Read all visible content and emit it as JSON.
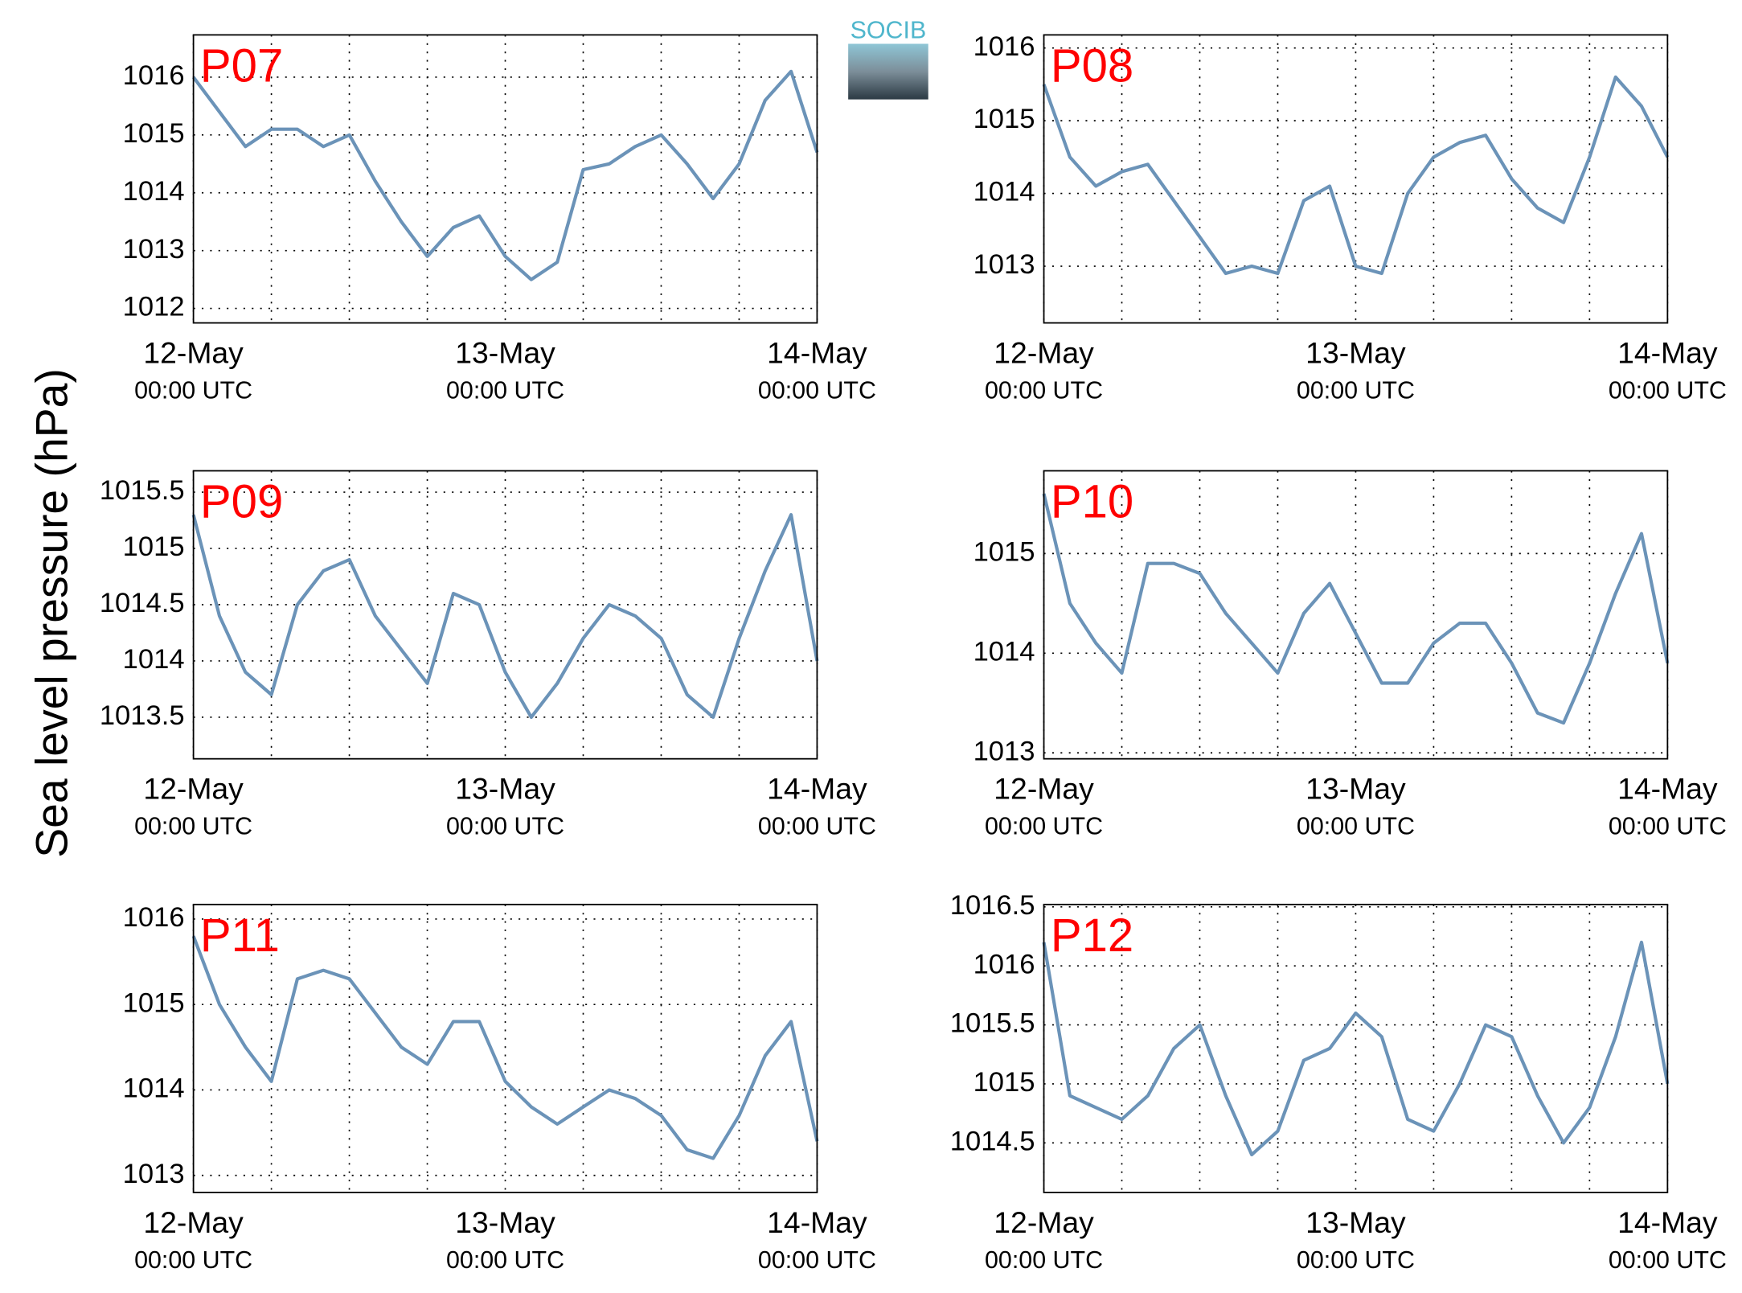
{
  "ylabel": "Sea level pressure (hPa)",
  "logo": "SOCIB",
  "chart_data": [
    {
      "type": "line",
      "title": "P07",
      "x": [
        0,
        2,
        4,
        6,
        8,
        10,
        12,
        14,
        16,
        18,
        20,
        22,
        24,
        26,
        28,
        30,
        32,
        34,
        36,
        38,
        40,
        42,
        44,
        46,
        48
      ],
      "series": [
        {
          "color": "#6b93b8",
          "values": [
            1016.0,
            1015.4,
            1014.8,
            1015.1,
            1015.1,
            1014.8,
            1015.0,
            1014.2,
            1013.5,
            1012.9,
            1013.4,
            1013.6,
            1012.9,
            1012.5,
            1012.8,
            1014.4,
            1014.5,
            1014.8,
            1015.0,
            1014.5,
            1013.9,
            1014.5,
            1015.6,
            1016.1,
            1014.7
          ]
        }
      ],
      "xlim": [
        0,
        48
      ],
      "ylim": [
        1011.75,
        1016.73
      ],
      "yticks": [
        1012,
        1013,
        1014,
        1015,
        1016
      ],
      "xticks": [
        {
          "value": 0,
          "label": "12-May",
          "sublabel": "00:00 UTC"
        },
        {
          "value": 24,
          "label": "13-May",
          "sublabel": "00:00 UTC"
        },
        {
          "value": 48,
          "label": "14-May",
          "sublabel": "00:00 UTC"
        }
      ],
      "xminor": [
        6,
        12,
        18,
        30,
        36,
        42
      ],
      "grid": true
    },
    {
      "type": "line",
      "title": "P08",
      "x": [
        0,
        2,
        4,
        6,
        8,
        10,
        12,
        14,
        16,
        18,
        20,
        22,
        24,
        26,
        28,
        30,
        32,
        34,
        36,
        38,
        40,
        42,
        44,
        46,
        48
      ],
      "series": [
        {
          "color": "#6b93b8",
          "values": [
            1015.5,
            1014.5,
            1014.1,
            1014.3,
            1014.4,
            1013.9,
            1013.4,
            1012.9,
            1013.0,
            1012.9,
            1013.9,
            1014.1,
            1013.0,
            1012.9,
            1014.0,
            1014.5,
            1014.7,
            1014.8,
            1014.2,
            1013.8,
            1013.6,
            1014.5,
            1015.6,
            1015.2,
            1014.5
          ]
        }
      ],
      "xlim": [
        0,
        48
      ],
      "ylim": [
        1012.22,
        1016.18
      ],
      "yticks": [
        1013,
        1014,
        1015,
        1016
      ],
      "xticks": [
        {
          "value": 0,
          "label": "12-May",
          "sublabel": "00:00 UTC"
        },
        {
          "value": 24,
          "label": "13-May",
          "sublabel": "00:00 UTC"
        },
        {
          "value": 48,
          "label": "14-May",
          "sublabel": "00:00 UTC"
        }
      ],
      "xminor": [
        6,
        12,
        18,
        30,
        36,
        42
      ],
      "grid": true
    },
    {
      "type": "line",
      "title": "P09",
      "x": [
        0,
        2,
        4,
        6,
        8,
        10,
        12,
        14,
        16,
        18,
        20,
        22,
        24,
        26,
        28,
        30,
        32,
        34,
        36,
        38,
        40,
        42,
        44,
        46,
        48
      ],
      "series": [
        {
          "color": "#6b93b8",
          "values": [
            1015.3,
            1014.4,
            1013.9,
            1013.7,
            1014.5,
            1014.8,
            1014.9,
            1014.4,
            1014.1,
            1013.8,
            1014.6,
            1014.5,
            1013.9,
            1013.5,
            1013.8,
            1014.2,
            1014.5,
            1014.4,
            1014.2,
            1013.7,
            1013.5,
            1014.2,
            1014.8,
            1015.3,
            1014.0
          ]
        }
      ],
      "xlim": [
        0,
        48
      ],
      "ylim": [
        1013.13,
        1015.69
      ],
      "yticks": [
        {
          "value": 1013.5,
          "label": "1013.5"
        },
        1014,
        {
          "value": 1014.5,
          "label": "1014.5"
        },
        1015,
        {
          "value": 1015.5,
          "label": "1015.5"
        }
      ],
      "xticks": [
        {
          "value": 0,
          "label": "12-May",
          "sublabel": "00:00 UTC"
        },
        {
          "value": 24,
          "label": "13-May",
          "sublabel": "00:00 UTC"
        },
        {
          "value": 48,
          "label": "14-May",
          "sublabel": "00:00 UTC"
        }
      ],
      "xminor": [
        6,
        12,
        18,
        30,
        36,
        42
      ],
      "grid": true
    },
    {
      "type": "line",
      "title": "P10",
      "x": [
        0,
        2,
        4,
        6,
        8,
        10,
        12,
        14,
        16,
        18,
        20,
        22,
        24,
        26,
        28,
        30,
        32,
        34,
        36,
        38,
        40,
        42,
        44,
        46,
        48
      ],
      "series": [
        {
          "color": "#6b93b8",
          "values": [
            1015.6,
            1014.5,
            1014.1,
            1013.8,
            1014.9,
            1014.9,
            1014.8,
            1014.4,
            1014.1,
            1013.8,
            1014.4,
            1014.7,
            1014.2,
            1013.7,
            1013.7,
            1014.1,
            1014.3,
            1014.3,
            1013.9,
            1013.4,
            1013.3,
            1013.9,
            1014.6,
            1015.2,
            1013.9
          ]
        }
      ],
      "xlim": [
        0,
        48
      ],
      "ylim": [
        1012.94,
        1015.83
      ],
      "yticks": [
        1013,
        1014,
        1015
      ],
      "xticks": [
        {
          "value": 0,
          "label": "12-May",
          "sublabel": "00:00 UTC"
        },
        {
          "value": 24,
          "label": "13-May",
          "sublabel": "00:00 UTC"
        },
        {
          "value": 48,
          "label": "14-May",
          "sublabel": "00:00 UTC"
        }
      ],
      "xminor": [
        6,
        12,
        18,
        30,
        36,
        42
      ],
      "grid": true
    },
    {
      "type": "line",
      "title": "P11",
      "x": [
        0,
        2,
        4,
        6,
        8,
        10,
        12,
        14,
        16,
        18,
        20,
        22,
        24,
        26,
        28,
        30,
        32,
        34,
        36,
        38,
        40,
        42,
        44,
        46,
        48
      ],
      "series": [
        {
          "color": "#6b93b8",
          "values": [
            1015.8,
            1015.0,
            1014.5,
            1014.1,
            1015.3,
            1015.4,
            1015.3,
            1014.9,
            1014.5,
            1014.3,
            1014.8,
            1014.8,
            1014.1,
            1013.8,
            1013.6,
            1013.8,
            1014.0,
            1013.9,
            1013.7,
            1013.3,
            1013.2,
            1013.7,
            1014.4,
            1014.8,
            1013.4
          ]
        }
      ],
      "xlim": [
        0,
        48
      ],
      "ylim": [
        1012.8,
        1016.17
      ],
      "yticks": [
        1013,
        1014,
        1015,
        1016
      ],
      "xticks": [
        {
          "value": 0,
          "label": "12-May",
          "sublabel": "00:00 UTC"
        },
        {
          "value": 24,
          "label": "13-May",
          "sublabel": "00:00 UTC"
        },
        {
          "value": 48,
          "label": "14-May",
          "sublabel": "00:00 UTC"
        }
      ],
      "xminor": [
        6,
        12,
        18,
        30,
        36,
        42
      ],
      "grid": true
    },
    {
      "type": "line",
      "title": "P12",
      "x": [
        0,
        2,
        4,
        6,
        8,
        10,
        12,
        14,
        16,
        18,
        20,
        22,
        24,
        26,
        28,
        30,
        32,
        34,
        36,
        38,
        40,
        42,
        44,
        46,
        48
      ],
      "series": [
        {
          "color": "#6b93b8",
          "values": [
            1016.2,
            1014.9,
            1014.8,
            1014.7,
            1014.9,
            1015.3,
            1015.5,
            1014.9,
            1014.4,
            1014.6,
            1015.2,
            1015.3,
            1015.6,
            1015.4,
            1014.7,
            1014.6,
            1015.0,
            1015.5,
            1015.4,
            1014.9,
            1014.5,
            1014.8,
            1015.4,
            1016.2,
            1015.0
          ]
        }
      ],
      "xlim": [
        0,
        48
      ],
      "ylim": [
        1014.08,
        1016.52
      ],
      "yticks": [
        {
          "value": 1014.5,
          "label": "1014.5"
        },
        1015,
        {
          "value": 1015.5,
          "label": "1015.5"
        },
        1016,
        {
          "value": 1016.5,
          "label": "1016.5"
        }
      ],
      "xticks": [
        {
          "value": 0,
          "label": "12-May",
          "sublabel": "00:00 UTC"
        },
        {
          "value": 24,
          "label": "13-May",
          "sublabel": "00:00 UTC"
        },
        {
          "value": 48,
          "label": "14-May",
          "sublabel": "00:00 UTC"
        }
      ],
      "xminor": [
        6,
        12,
        18,
        30,
        36,
        42
      ],
      "grid": true
    }
  ]
}
